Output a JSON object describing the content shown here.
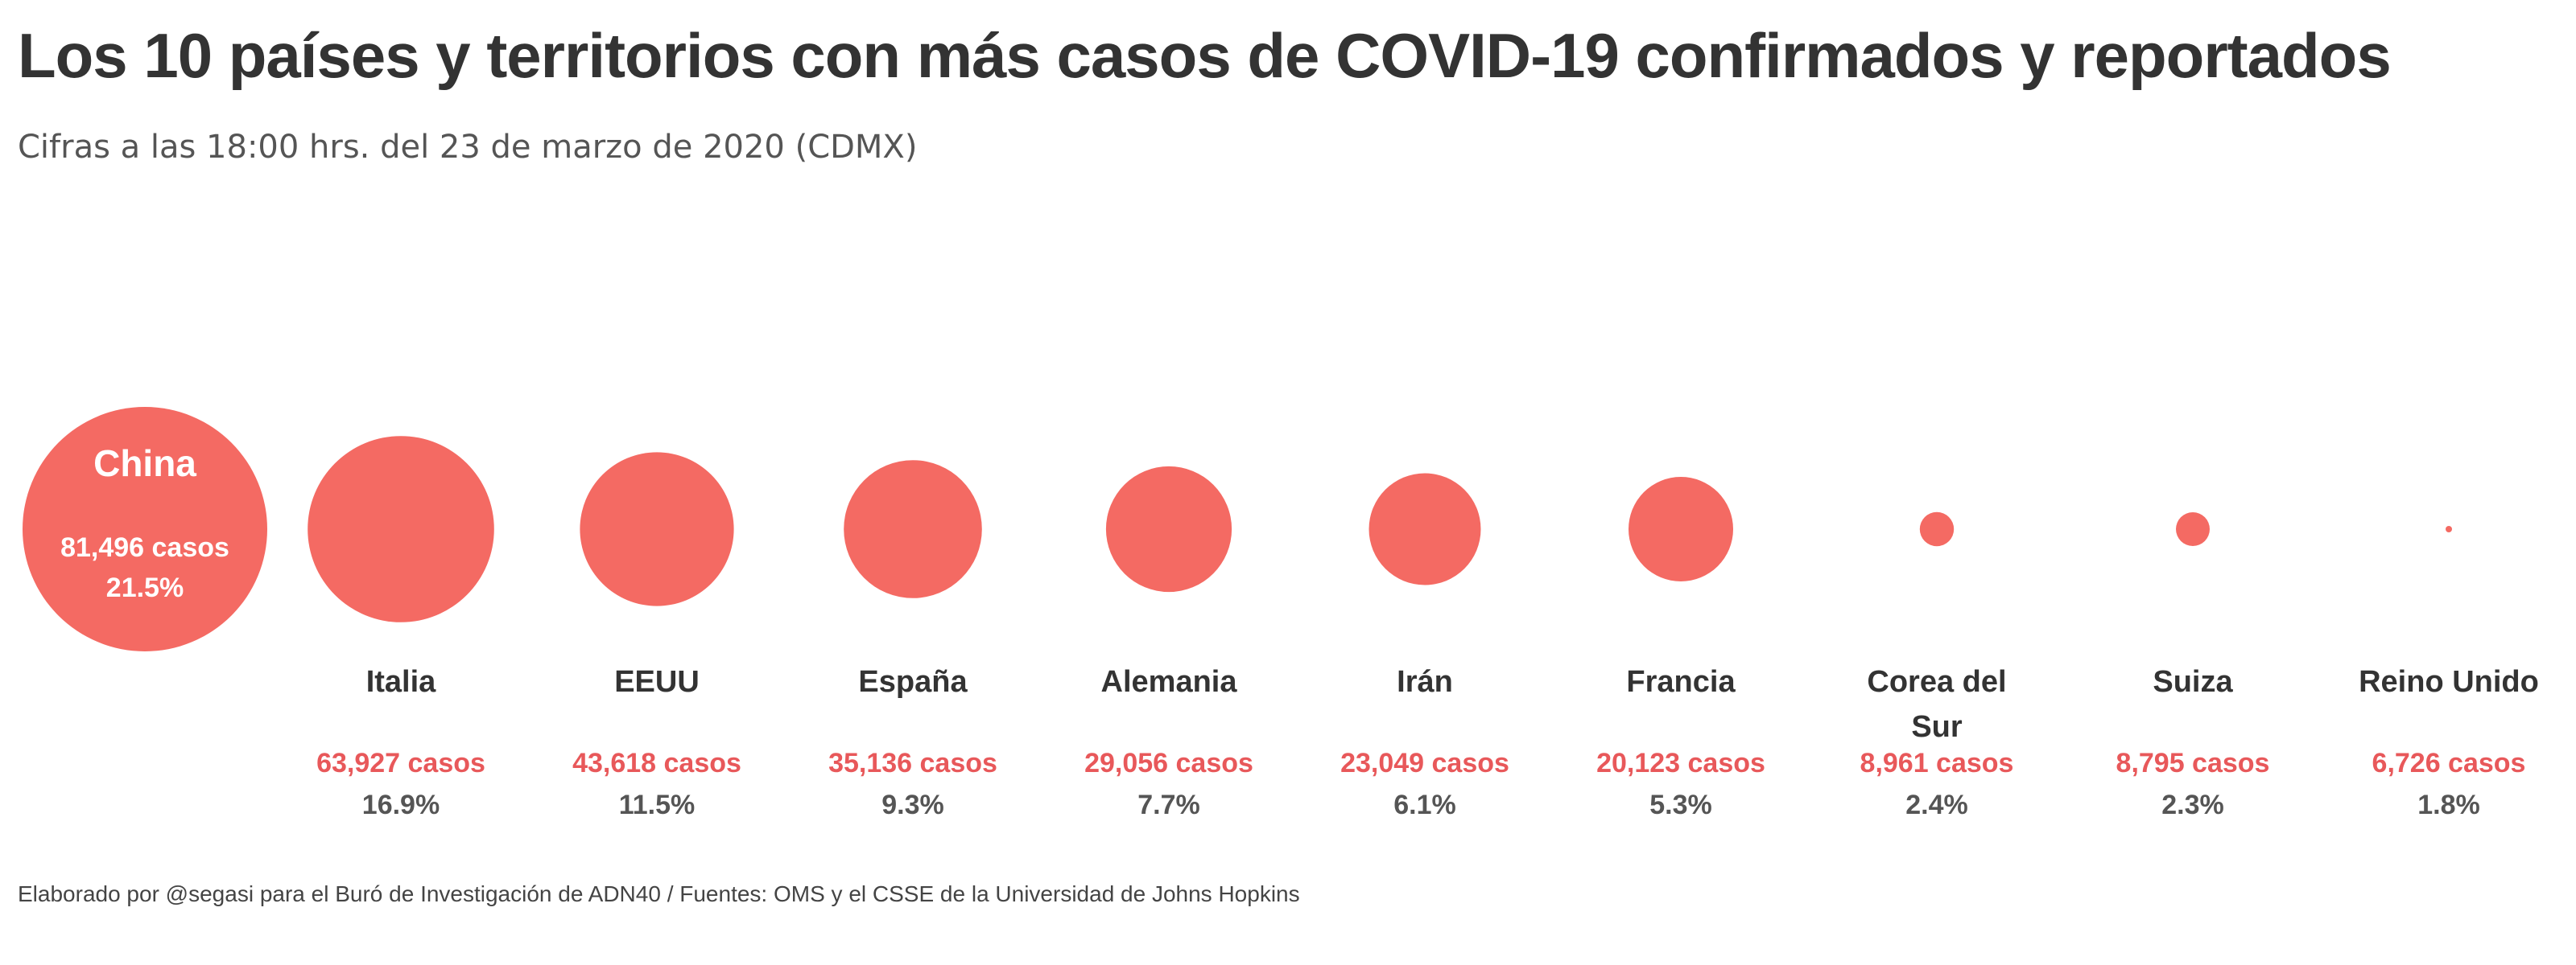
{
  "title": "Los 10 países y territorios con más casos de COVID-19 confirmados y reportados",
  "subtitle": "Cifras a las 18:00 hrs. del 23 de marzo de 2020 (CDMX)",
  "footer": "Elaborado por @segasi para el Buró de Investigación de ADN40 / Fuentes: OMS y el CSSE de la Universidad de Johns Hopkins",
  "colors": {
    "bubble": "#f46a63",
    "cases_text": "#e8585a",
    "label_text": "#333333",
    "pct_text": "#555555",
    "inside_text": "#ffffff"
  },
  "chart_data": {
    "type": "bubble",
    "title": "Los 10 países y territorios con más casos de COVID-19 confirmados y reportados",
    "subtitle": "Cifras a las 18:00 hrs. del 23 de marzo de 2020 (CDMX)",
    "xlabel": "",
    "ylabel": "",
    "points": [
      {
        "country": "China",
        "label_lines": [
          "China"
        ],
        "cases": 81496,
        "cases_label": "81,496 casos",
        "pct": "21.5%"
      },
      {
        "country": "Italia",
        "label_lines": [
          "Italia"
        ],
        "cases": 63927,
        "cases_label": "63,927 casos",
        "pct": "16.9%"
      },
      {
        "country": "EEUU",
        "label_lines": [
          "EEUU"
        ],
        "cases": 43618,
        "cases_label": "43,618 casos",
        "pct": "11.5%"
      },
      {
        "country": "España",
        "label_lines": [
          "España"
        ],
        "cases": 35136,
        "cases_label": "35,136 casos",
        "pct": "9.3%"
      },
      {
        "country": "Alemania",
        "label_lines": [
          "Alemania"
        ],
        "cases": 29056,
        "cases_label": "29,056 casos",
        "pct": "7.7%"
      },
      {
        "country": "Irán",
        "label_lines": [
          "Irán"
        ],
        "cases": 23049,
        "cases_label": "23,049 casos",
        "pct": "6.1%"
      },
      {
        "country": "Francia",
        "label_lines": [
          "Francia"
        ],
        "cases": 20123,
        "cases_label": "20,123 casos",
        "pct": "5.3%"
      },
      {
        "country": "Corea del Sur",
        "label_lines": [
          "Corea del",
          "Sur"
        ],
        "cases": 8961,
        "cases_label": "8,961 casos",
        "pct": "2.4%"
      },
      {
        "country": "Suiza",
        "label_lines": [
          "Suiza"
        ],
        "cases": 8795,
        "cases_label": "8,795 casos",
        "pct": "2.3%"
      },
      {
        "country": "Reino Unido",
        "label_lines": [
          "Reino Unido"
        ],
        "cases": 6726,
        "cases_label": "6,726 casos",
        "pct": "1.8%"
      }
    ]
  }
}
